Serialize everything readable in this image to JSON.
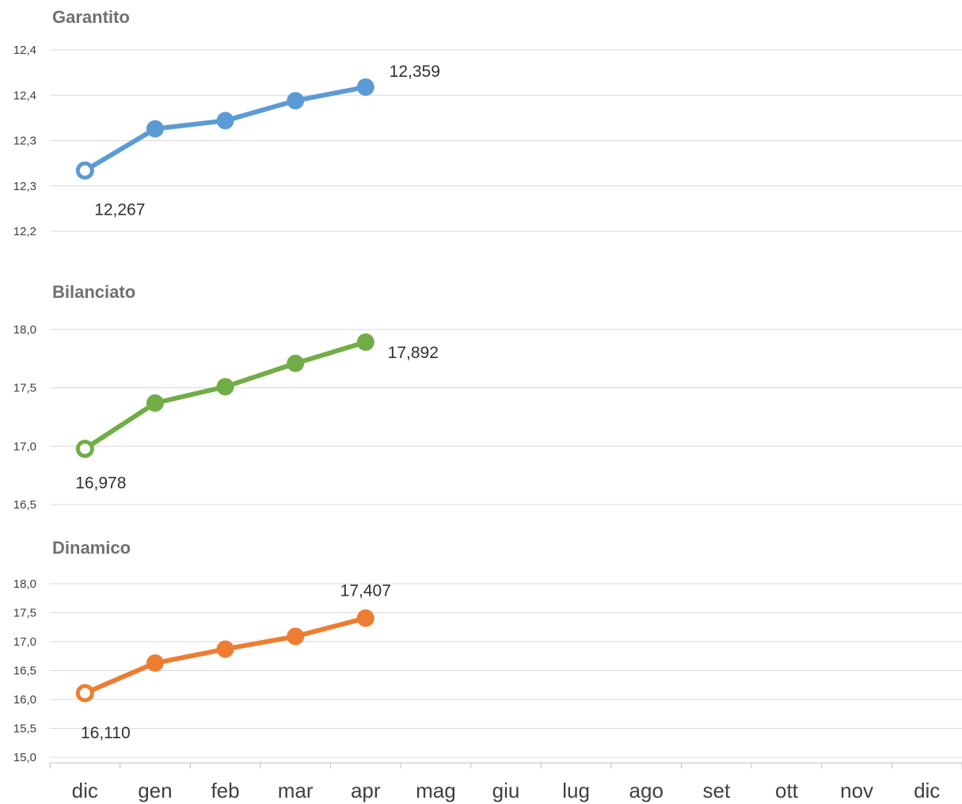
{
  "chart_data": {
    "type": "line",
    "categories": [
      "dic",
      "gen",
      "feb",
      "mar",
      "apr",
      "mag",
      "giu",
      "lug",
      "ago",
      "set",
      "ott",
      "nov",
      "dic"
    ],
    "panels": [
      {
        "title": "Garantito",
        "color": "#5b9bd5",
        "yticks": [
          "12,2",
          "12,3",
          "12,3",
          "12,4",
          "12,4"
        ],
        "ylim": [
          12.2,
          12.4
        ],
        "values": [
          12.267,
          12.313,
          12.322,
          12.344,
          12.359
        ],
        "labels": [
          {
            "index": 0,
            "text": "12,267"
          },
          {
            "index": 4,
            "text": "12,359"
          }
        ]
      },
      {
        "title": "Bilanciato",
        "color": "#70ad47",
        "yticks": [
          "16,5",
          "17,0",
          "17,5",
          "18,0"
        ],
        "ylim": [
          16.5,
          18.0
        ],
        "values": [
          16.978,
          17.37,
          17.51,
          17.71,
          17.892
        ],
        "labels": [
          {
            "index": 0,
            "text": "16,978"
          },
          {
            "index": 4,
            "text": "17,892"
          }
        ]
      },
      {
        "title": "Dinamico",
        "color": "#ed7d31",
        "yticks": [
          "15,0",
          "15,5",
          "16,0",
          "16,5",
          "17,0",
          "17,5",
          "18,0"
        ],
        "ylim": [
          15.0,
          18.0
        ],
        "values": [
          16.11,
          16.63,
          16.87,
          17.09,
          17.407
        ],
        "labels": [
          {
            "index": 0,
            "text": "16,110"
          },
          {
            "index": 4,
            "text": "17,407"
          }
        ]
      }
    ]
  }
}
